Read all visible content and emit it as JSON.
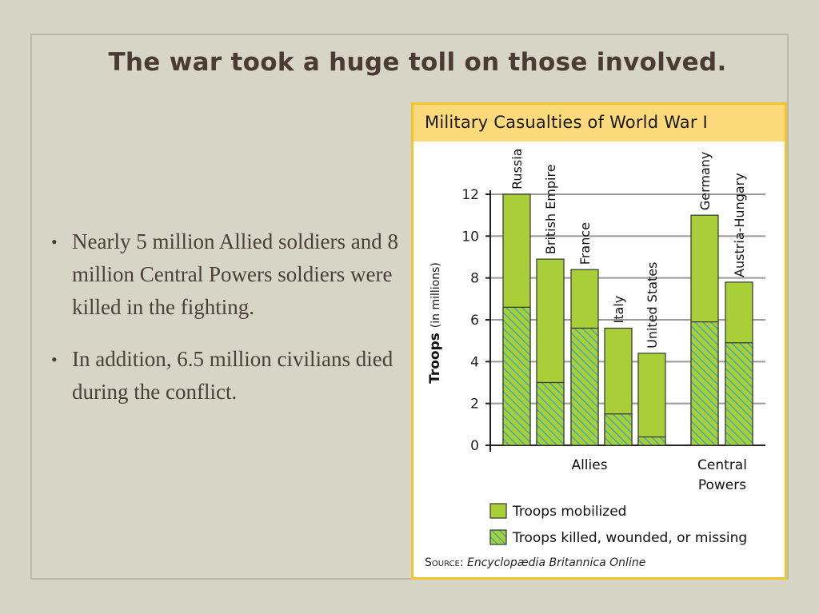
{
  "slide": {
    "title": "The war took a huge toll on those involved.",
    "bullets": [
      "Nearly 5 million Allied soldiers and 8 million Central Powers soldiers were killed in the fighting.",
      "In addition, 6.5 million civilians died during the conflict."
    ]
  },
  "chart_data": {
    "type": "bar",
    "title": "Military Casualties of World War I",
    "ylabel": "Troops",
    "ylabel_unit": "(in millions)",
    "xlabel": "",
    "ylim": [
      0,
      12
    ],
    "yticks": [
      0,
      2,
      4,
      6,
      8,
      10,
      12
    ],
    "grid": true,
    "groups": [
      "Allies",
      "Central Powers"
    ],
    "categories": [
      "Russia",
      "British Empire",
      "France",
      "Italy",
      "United States",
      "Germany",
      "Austria-Hungary"
    ],
    "category_group": [
      "Allies",
      "Allies",
      "Allies",
      "Allies",
      "Allies",
      "Central Powers",
      "Central Powers"
    ],
    "series": [
      {
        "name": "Troops mobilized",
        "values": [
          12.0,
          8.9,
          8.4,
          5.6,
          4.4,
          11.0,
          7.8
        ],
        "color": "#a8cf38",
        "pattern": "solid"
      },
      {
        "name": "Troops killed, wounded, or missing",
        "values": [
          6.6,
          3.0,
          5.6,
          1.5,
          0.4,
          5.9,
          4.9
        ],
        "color": "#a8cf38",
        "pattern": "hatch",
        "hatch_color": "#29a3c6"
      }
    ],
    "legend_position": "bottom",
    "source_label": "Source:",
    "source_text": "Encyclopædia Britannica Online"
  }
}
